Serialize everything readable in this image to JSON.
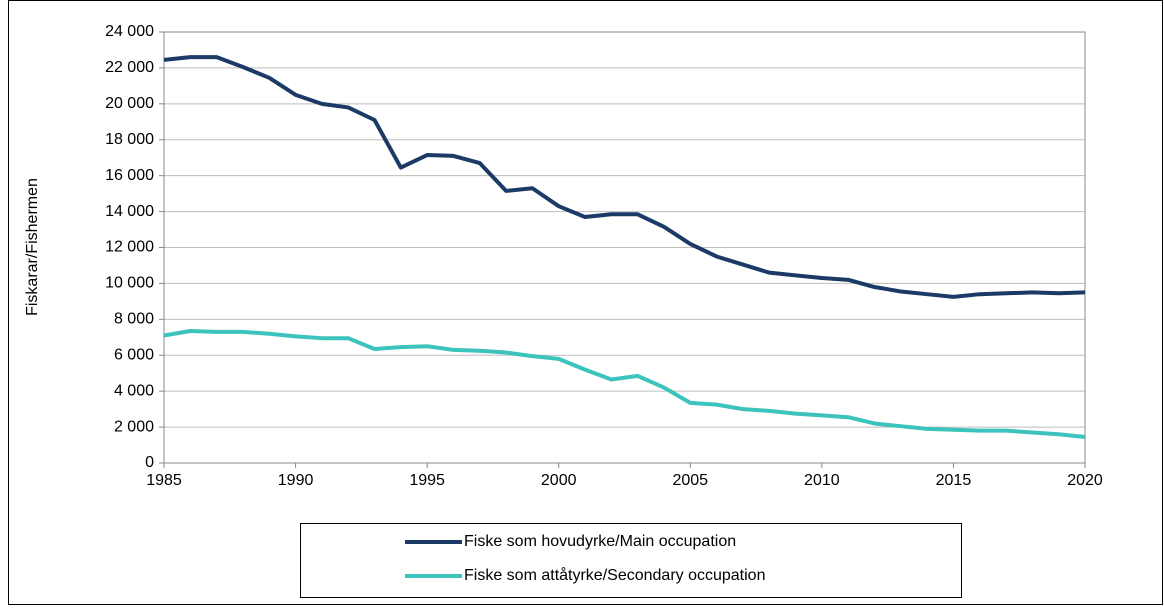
{
  "chart_data": {
    "type": "line",
    "y_label": "Fiskarar/Fishermen",
    "x": [
      1985,
      1986,
      1987,
      1988,
      1989,
      1990,
      1991,
      1992,
      1993,
      1994,
      1995,
      1996,
      1997,
      1998,
      1999,
      2000,
      2001,
      2002,
      2003,
      2004,
      2005,
      2006,
      2007,
      2008,
      2009,
      2010,
      2011,
      2012,
      2013,
      2014,
      2015,
      2016,
      2017,
      2018,
      2019,
      2020
    ],
    "series": [
      {
        "name": "Fiske som hovudyrke/Main occupation",
        "color": "#1b3a66",
        "values": [
          22450,
          22600,
          22600,
          22050,
          21450,
          20500,
          20000,
          19800,
          19100,
          16450,
          17150,
          17100,
          16700,
          15150,
          15300,
          14300,
          13700,
          13850,
          13850,
          13150,
          12200,
          11500,
          11050,
          10600,
          10450,
          10300,
          10200,
          9800,
          9550,
          9400,
          9250,
          9400,
          9450,
          9500,
          9450,
          9500
        ]
      },
      {
        "name": "Fiske som attåtyrke/Secondary occupation",
        "color": "#3cc3bd",
        "values": [
          7100,
          7350,
          7300,
          7300,
          7200,
          7050,
          6950,
          6950,
          6350,
          6450,
          6500,
          6300,
          6250,
          6150,
          5950,
          5800,
          5200,
          4650,
          4850,
          4200,
          3350,
          3250,
          3000,
          2900,
          2750,
          2650,
          2550,
          2200,
          2050,
          1900,
          1850,
          1800,
          1800,
          1700,
          1600,
          1450
        ]
      }
    ],
    "xlim": [
      1985,
      2020
    ],
    "xticks": [
      1985,
      1990,
      1995,
      2000,
      2005,
      2010,
      2015,
      2020
    ],
    "ylim": [
      0,
      24000
    ],
    "yticks": [
      0,
      {
        "value": 2000,
        "label": "2 000"
      },
      {
        "value": 4000,
        "label": "4 000"
      },
      {
        "value": 6000,
        "label": "6 000"
      },
      {
        "value": 8000,
        "label": "8 000"
      },
      {
        "value": 10000,
        "label": "10 000"
      },
      {
        "value": 12000,
        "label": "12 000"
      },
      {
        "value": 14000,
        "label": "14 000"
      },
      {
        "value": 16000,
        "label": "16 000"
      },
      {
        "value": 18000,
        "label": "18 000"
      },
      {
        "value": 20000,
        "label": "20 000"
      },
      {
        "value": 22000,
        "label": "22 000"
      },
      {
        "value": 24000,
        "label": "24 000"
      }
    ],
    "grid": true
  }
}
